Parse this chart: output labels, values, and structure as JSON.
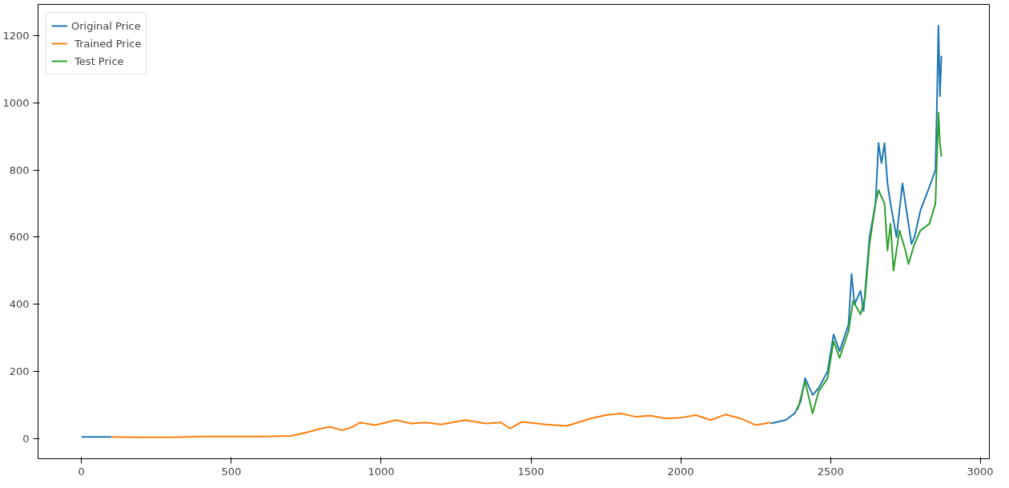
{
  "chart_data": {
    "type": "line",
    "xlim": [
      -145,
      3030
    ],
    "ylim": [
      -60,
      1293
    ],
    "xticks": [
      0,
      500,
      1000,
      1500,
      2000,
      2500,
      3000
    ],
    "yticks": [
      0,
      200,
      400,
      600,
      800,
      1000,
      1200
    ],
    "grid": false,
    "legend": "top left",
    "marker": "none",
    "line_style": "solid",
    "series": [
      {
        "name": "Original Price",
        "color": "#1f77b4",
        "x": [
          0,
          50,
          100,
          1200,
          2300,
          2350,
          2380,
          2400,
          2415,
          2440,
          2460,
          2490,
          2510,
          2530,
          2560,
          2570,
          2580,
          2600,
          2610,
          2630,
          2650,
          2660,
          2670,
          2680,
          2690,
          2700,
          2720,
          2740,
          2750,
          2770,
          2780,
          2800,
          2830,
          2850,
          2855,
          2860,
          2865,
          2870
        ],
        "values": [
          5,
          5,
          5,
          null,
          45,
          55,
          75,
          110,
          180,
          130,
          150,
          200,
          310,
          260,
          340,
          490,
          400,
          440,
          380,
          600,
          700,
          880,
          820,
          880,
          760,
          700,
          600,
          760,
          700,
          580,
          600,
          680,
          750,
          800,
          1000,
          1230,
          1020,
          1140
        ]
      },
      {
        "name": " Trained Price",
        "color": "#ff7f0e",
        "x": [
          100,
          200,
          300,
          400,
          500,
          600,
          700,
          750,
          800,
          830,
          870,
          900,
          930,
          980,
          1050,
          1100,
          1150,
          1200,
          1280,
          1350,
          1400,
          1430,
          1470,
          1550,
          1620,
          1700,
          1750,
          1800,
          1850,
          1900,
          1950,
          2000,
          2050,
          2100,
          2150,
          2200,
          2250,
          2300
        ],
        "values": [
          5,
          4,
          4,
          6,
          6,
          6,
          8,
          18,
          30,
          35,
          25,
          33,
          48,
          40,
          55,
          45,
          48,
          42,
          55,
          45,
          48,
          30,
          50,
          42,
          38,
          60,
          70,
          75,
          65,
          68,
          60,
          62,
          70,
          55,
          72,
          60,
          40,
          48
        ]
      },
      {
        "name": " Test Price",
        "color": "#2ca02c",
        "x": [
          2390,
          2415,
          2440,
          2460,
          2490,
          2510,
          2530,
          2560,
          2575,
          2600,
          2615,
          2630,
          2650,
          2660,
          2680,
          2690,
          2700,
          2710,
          2730,
          2750,
          2760,
          2780,
          2800,
          2830,
          2850,
          2860,
          2865,
          2870
        ],
        "values": [
          86,
          170,
          75,
          140,
          180,
          290,
          240,
          320,
          410,
          370,
          420,
          580,
          700,
          740,
          700,
          560,
          640,
          500,
          620,
          560,
          520,
          580,
          620,
          640,
          700,
          970,
          880,
          840
        ]
      }
    ]
  }
}
